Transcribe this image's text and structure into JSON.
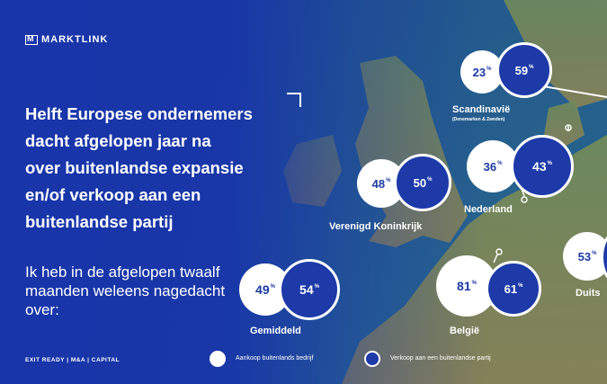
{
  "brand": "MARKTLINK",
  "headline_lines": [
    "Helft Europese ondernemers",
    "dacht afgelopen jaar na",
    "over buitenlandse expansie",
    "en/of verkoop aan een",
    "buitenlandse partij"
  ],
  "subheadline": "Ik heb in de afgelopen twaalf maanden weleens nagedacht over:",
  "regions": [
    {
      "name": "Gemiddeld",
      "acquisition": "49",
      "sale": "54"
    },
    {
      "name": "Verenigd Koninkrijk",
      "acquisition": "48",
      "sale": "50"
    },
    {
      "name": "Scandinavië",
      "note": "(Denemarken & Zweden)",
      "acquisition": "23",
      "sale": "59"
    },
    {
      "name": "Nederland",
      "acquisition": "36",
      "sale": "43"
    },
    {
      "name": "België",
      "acquisition": "81",
      "sale": "61"
    },
    {
      "name": "Duits",
      "acquisition": "53",
      "sale": ""
    }
  ],
  "percent_sign": "%",
  "footer": "EXIT READY | M&A | CAPITAL",
  "legend": {
    "acquisition": "Aankoop buitenlands bedrijf",
    "sale": "Verkoop aan een buitenlandse partij"
  },
  "colors": {
    "brand_blue": "#1d3aa8",
    "white": "#ffffff"
  }
}
